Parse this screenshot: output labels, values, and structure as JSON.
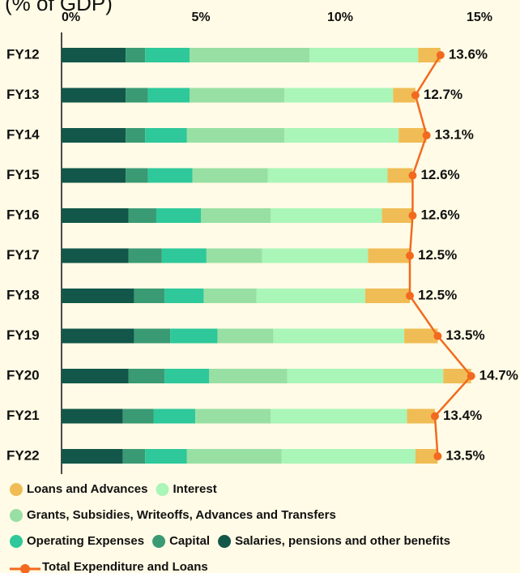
{
  "chart_data": {
    "type": "bar",
    "orientation": "horizontal",
    "stacked": true,
    "title": "(% of GDP)",
    "categories": [
      "FY12",
      "FY13",
      "FY14",
      "FY15",
      "FY16",
      "FY17",
      "FY18",
      "FY19",
      "FY20",
      "FY21",
      "FY22"
    ],
    "series": [
      {
        "name": "Salaries, pensions and other benefits",
        "color": "#12574a",
        "values": [
          2.3,
          2.3,
          2.3,
          2.3,
          2.4,
          2.4,
          2.6,
          2.6,
          2.4,
          2.2,
          2.2
        ]
      },
      {
        "name": "Capital",
        "color": "#3a9a74",
        "values": [
          0.7,
          0.8,
          0.7,
          0.8,
          1.0,
          1.2,
          1.1,
          1.3,
          1.3,
          1.1,
          0.8
        ]
      },
      {
        "name": "Operating Expenses",
        "color": "#2ec89a",
        "values": [
          1.6,
          1.5,
          1.5,
          1.6,
          1.6,
          1.6,
          1.4,
          1.7,
          1.6,
          1.5,
          1.5
        ]
      },
      {
        "name": "Grants, Subsidies, Writeoffs, Advances and Transfers",
        "color": "#98dfa4",
        "values": [
          4.3,
          3.4,
          3.5,
          2.7,
          2.5,
          2.0,
          1.9,
          2.0,
          2.8,
          2.7,
          3.4
        ]
      },
      {
        "name": "Interest",
        "color": "#aaf5b8",
        "values": [
          3.9,
          3.9,
          4.1,
          4.3,
          4.0,
          3.8,
          3.9,
          4.7,
          5.6,
          4.9,
          4.8
        ]
      },
      {
        "name": "Loans and Advances",
        "color": "#f0bc55",
        "values": [
          0.8,
          0.8,
          1.0,
          0.9,
          1.1,
          1.5,
          1.6,
          1.2,
          1.0,
          1.0,
          0.8
        ]
      }
    ],
    "total": {
      "name": "Total Expenditure and Loans",
      "color": "#f26a1f",
      "values": [
        13.6,
        12.7,
        13.1,
        12.6,
        12.6,
        12.5,
        12.5,
        13.5,
        14.7,
        13.4,
        13.5
      ],
      "value_labels": [
        "13.6%",
        "12.7%",
        "13.1%",
        "12.6%",
        "12.6%",
        "12.5%",
        "12.5%",
        "13.5%",
        "14.7%",
        "13.4%",
        "13.5%"
      ]
    },
    "xlim": [
      0,
      15
    ],
    "xticks": [
      {
        "value": 0,
        "label": "0%"
      },
      {
        "value": 5,
        "label": "5%"
      },
      {
        "value": 10,
        "label": "10%"
      },
      {
        "value": 15,
        "label": "15%"
      }
    ],
    "legend_rows": [
      [
        5,
        4
      ],
      [
        3
      ],
      [
        2,
        1,
        0
      ]
    ]
  }
}
